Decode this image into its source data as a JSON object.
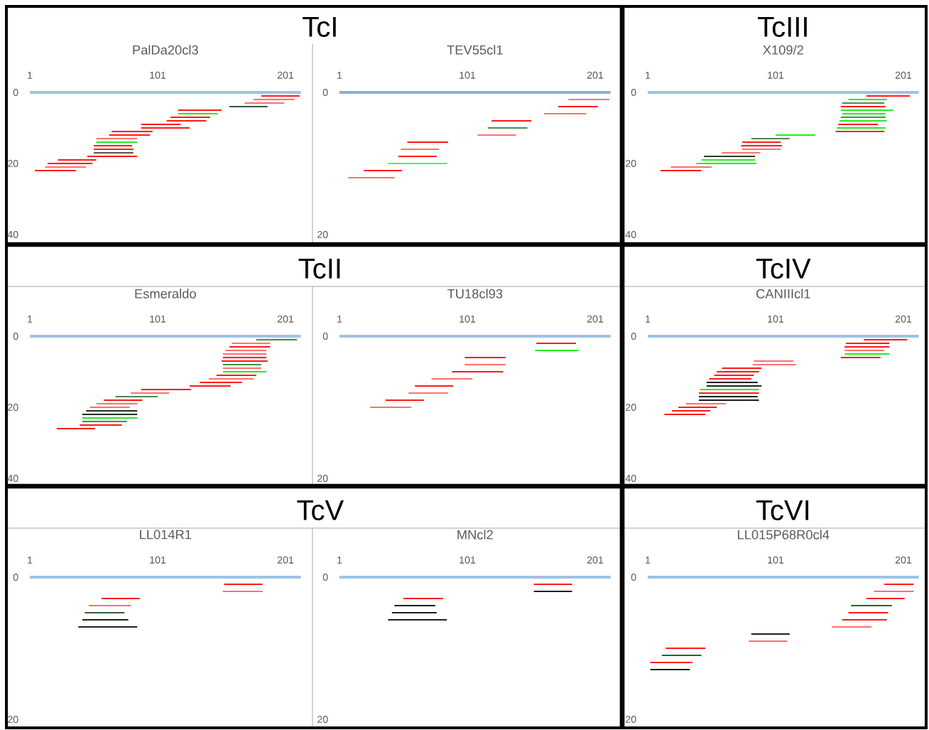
{
  "chart_data": [
    {
      "type": "line",
      "title": "PalDa20cl3",
      "annotations": [
        "TcI"
      ],
      "xlim": [
        1,
        213
      ],
      "ylim": [
        40,
        0
      ],
      "xticks": [
        1,
        101,
        201
      ],
      "yticks": [
        0,
        20,
        40
      ],
      "series": [
        {
          "color": "#9dc3e6",
          "x": [
            1,
            213
          ],
          "values": [
            0,
            0
          ]
        },
        {
          "color": "#ff1a1a",
          "x": [
            182,
            212,
            null,
            117,
            151,
            null,
            111,
            142,
            null,
            108,
            139,
            null,
            88,
            119,
            null,
            88,
            126,
            null,
            65,
            97,
            null,
            63,
            95,
            null,
            51,
            81,
            null,
            51,
            82,
            null,
            46,
            85,
            null,
            23,
            53,
            null,
            15,
            50,
            null,
            5,
            37
          ],
          "values": [
            1,
            1,
            null,
            5,
            5,
            null,
            7,
            7,
            null,
            8,
            8,
            null,
            9,
            9,
            null,
            10,
            10,
            null,
            11,
            11,
            null,
            12,
            12,
            null,
            15,
            15,
            null,
            16,
            16,
            null,
            18,
            18,
            null,
            19,
            19,
            null,
            20,
            20,
            null,
            22,
            22
          ]
        },
        {
          "color": "#ff7070",
          "x": [
            176,
            208,
            null,
            169,
            200,
            null,
            53,
            85,
            null,
            13,
            45
          ],
          "values": [
            2,
            2,
            null,
            3,
            3,
            null,
            13,
            13,
            null,
            21,
            21
          ]
        },
        {
          "color": "#22ee22",
          "x": [
            117,
            148,
            null,
            53,
            85
          ],
          "values": [
            6,
            6,
            null,
            14,
            14
          ]
        },
        {
          "color": "#2f5f2f",
          "x": [
            157,
            187
          ],
          "values": [
            4,
            4
          ]
        },
        {
          "color": "#555555",
          "x": [
            51,
            82
          ],
          "values": [
            17,
            17
          ]
        }
      ]
    },
    {
      "type": "line",
      "title": "TEV55cl1",
      "xlim": [
        1,
        213
      ],
      "ylim": [
        20,
        0
      ],
      "xticks": [
        1,
        101,
        201
      ],
      "yticks": [
        0,
        20
      ],
      "series": [
        {
          "color": "#8faadc",
          "x": [
            1,
            213
          ],
          "values": [
            0,
            0
          ]
        },
        {
          "color": "#ff1a1a",
          "x": [
            172,
            203,
            null,
            120,
            151,
            null,
            54,
            86,
            null,
            47,
            77,
            null,
            20,
            50
          ],
          "values": [
            2,
            2,
            null,
            4,
            4,
            null,
            7,
            7,
            null,
            9,
            9,
            null,
            11,
            11
          ]
        },
        {
          "color": "#ff7070",
          "x": [
            180,
            212,
            null,
            161,
            194,
            null,
            109,
            139,
            null,
            49,
            79,
            null,
            8,
            44
          ],
          "values": [
            1,
            1,
            null,
            3,
            3,
            null,
            6,
            6,
            null,
            8,
            8,
            null,
            12,
            12
          ]
        },
        {
          "color": "#44ff44",
          "x": [
            39,
            85
          ],
          "values": [
            10,
            10
          ]
        },
        {
          "color": "#4d8a4d",
          "x": [
            117,
            148
          ],
          "values": [
            5,
            5
          ]
        }
      ]
    },
    {
      "type": "line",
      "title": "X109/2",
      "annotations": [
        "TcIII"
      ],
      "xlim": [
        1,
        213
      ],
      "ylim": [
        40,
        0
      ],
      "xticks": [
        1,
        101,
        201
      ],
      "yticks": [
        0,
        20,
        40
      ],
      "series": [
        {
          "color": "#9dc3e6",
          "x": [
            1,
            213
          ],
          "values": [
            0,
            0
          ]
        },
        {
          "color": "#ff1a1a",
          "x": [
            172,
            206,
            null,
            152,
            187,
            null,
            150,
            181,
            null,
            148,
            186,
            null,
            75,
            105,
            null,
            74,
            106,
            null,
            11,
            43
          ],
          "values": [
            1,
            1,
            null,
            4,
            4,
            null,
            9,
            9,
            null,
            11,
            11,
            null,
            14,
            14,
            null,
            15,
            15,
            null,
            22,
            22
          ]
        },
        {
          "color": "#ff7070",
          "x": [
            75,
            105,
            null,
            59,
            89,
            null,
            19,
            51
          ],
          "values": [
            16,
            16,
            null,
            17,
            17,
            null,
            21,
            21
          ]
        },
        {
          "color": "#22ee22",
          "x": [
            158,
            188,
            null,
            152,
            193,
            null,
            153,
            187,
            null,
            151,
            188,
            null,
            149,
            187,
            null,
            101,
            132,
            null,
            43,
            85,
            null,
            39,
            86
          ],
          "values": [
            2,
            2,
            null,
            5,
            5,
            null,
            6,
            6,
            null,
            8,
            8,
            null,
            10,
            10,
            null,
            12,
            12,
            null,
            19,
            19,
            null,
            20,
            20
          ]
        },
        {
          "color": "#4d8a4d",
          "x": [
            153,
            186,
            null,
            152,
            187,
            null,
            82,
            112
          ],
          "values": [
            3,
            3,
            null,
            7,
            7,
            null,
            13,
            13
          ]
        },
        {
          "color": "#2a3f2a",
          "x": [
            45,
            85
          ],
          "values": [
            18,
            18
          ]
        }
      ]
    },
    {
      "type": "line",
      "title": "Esmeraldo",
      "annotations": [
        "TcII"
      ],
      "xlim": [
        1,
        213
      ],
      "ylim": [
        40,
        0
      ],
      "xticks": [
        1,
        101,
        201
      ],
      "yticks": [
        0,
        20,
        40
      ],
      "series": [
        {
          "color": "#9dc3e6",
          "x": [
            1,
            213
          ],
          "values": [
            0,
            0
          ]
        },
        {
          "color": "#ff1a1a",
          "x": [
            157,
            189,
            null,
            152,
            186,
            null,
            151,
            187,
            null,
            147,
            178,
            null,
            134,
            167,
            null,
            126,
            158,
            null,
            88,
            127,
            null,
            59,
            89,
            null,
            40,
            73,
            null,
            22,
            52
          ],
          "values": [
            3,
            3,
            null,
            6,
            6,
            null,
            7,
            7,
            null,
            11,
            11,
            null,
            13,
            13,
            null,
            14,
            14,
            null,
            15,
            15,
            null,
            18,
            18,
            null,
            25,
            25,
            null,
            26,
            26
          ]
        },
        {
          "color": "#ff7070",
          "x": [
            159,
            189,
            null,
            154,
            186,
            null,
            152,
            186,
            null,
            152,
            182,
            null,
            141,
            176,
            null,
            80,
            110,
            null,
            53,
            85,
            null,
            48,
            79
          ],
          "values": [
            2,
            2,
            null,
            4,
            4,
            null,
            5,
            5,
            null,
            9,
            9,
            null,
            12,
            12,
            null,
            16,
            16,
            null,
            19,
            19,
            null,
            20,
            20
          ]
        },
        {
          "color": "#22ee22",
          "x": [
            152,
            186,
            null,
            42,
            85
          ],
          "values": [
            10,
            10,
            null,
            23,
            23
          ]
        },
        {
          "color": "#4d8a4d",
          "x": [
            178,
            210,
            null,
            152,
            182,
            null,
            68,
            101,
            null,
            42,
            77
          ],
          "values": [
            1,
            1,
            null,
            8,
            8,
            null,
            17,
            17,
            null,
            24,
            24
          ]
        },
        {
          "color": "#1f331f",
          "x": [
            45,
            85,
            null,
            42,
            85
          ],
          "values": [
            21,
            21,
            null,
            22,
            22
          ]
        }
      ]
    },
    {
      "type": "line",
      "title": "TU18cl93",
      "xlim": [
        1,
        213
      ],
      "ylim": [
        20,
        0
      ],
      "xticks": [
        1,
        101,
        201
      ],
      "yticks": [
        0,
        20
      ],
      "series": [
        {
          "color": "#9dc3e6",
          "x": [
            1,
            213
          ],
          "values": [
            0,
            0
          ]
        },
        {
          "color": "#ff1a1a",
          "x": [
            155,
            186,
            null,
            99,
            131,
            null,
            89,
            129,
            null,
            60,
            90,
            null,
            37,
            67
          ],
          "values": [
            1,
            1,
            null,
            3,
            3,
            null,
            5,
            5,
            null,
            7,
            7,
            null,
            9,
            9
          ]
        },
        {
          "color": "#ff7070",
          "x": [
            99,
            131,
            null,
            73,
            105,
            null,
            55,
            86,
            null,
            25,
            57
          ],
          "values": [
            4,
            4,
            null,
            6,
            6,
            null,
            8,
            8,
            null,
            10,
            10
          ]
        },
        {
          "color": "#22ee22",
          "x": [
            154,
            188
          ],
          "values": [
            2,
            2
          ]
        }
      ]
    },
    {
      "type": "line",
      "title": "CANIIIcl1",
      "annotations": [
        "TcIV"
      ],
      "xlim": [
        1,
        213
      ],
      "ylim": [
        40,
        0
      ],
      "xticks": [
        1,
        101,
        201
      ],
      "yticks": [
        0,
        20,
        40
      ],
      "series": [
        {
          "color": "#9dc3e6",
          "x": [
            1,
            213
          ],
          "values": [
            0,
            0
          ]
        },
        {
          "color": "#ff1a1a",
          "x": [
            170,
            204,
            null,
            156,
            190,
            null,
            155,
            190,
            null,
            152,
            183,
            null,
            59,
            90,
            null,
            55,
            88,
            null,
            53,
            84,
            null,
            49,
            82,
            null,
            41,
            88,
            null,
            25,
            55,
            null,
            20,
            50,
            null,
            14,
            46
          ],
          "values": [
            1,
            1,
            null,
            2,
            2,
            null,
            3,
            3,
            null,
            6,
            6,
            null,
            9,
            9,
            null,
            10,
            10,
            null,
            11,
            11,
            null,
            12,
            12,
            null,
            16,
            16,
            null,
            20,
            20,
            null,
            21,
            21,
            null,
            22,
            22
          ]
        },
        {
          "color": "#ff7070",
          "x": [
            155,
            186,
            null,
            84,
            115,
            null,
            83,
            117,
            null,
            31,
            62
          ],
          "values": [
            4,
            4,
            null,
            7,
            7,
            null,
            8,
            8,
            null,
            19,
            19
          ]
        },
        {
          "color": "#22ee22",
          "x": [
            155,
            190,
            null,
            42,
            88
          ],
          "values": [
            5,
            5,
            null,
            15,
            15
          ]
        },
        {
          "color": "#1f1f1f",
          "x": [
            47,
            87,
            null,
            47,
            90,
            null,
            41,
            87,
            null,
            41,
            88
          ],
          "values": [
            13,
            13,
            null,
            14,
            14,
            null,
            17,
            17,
            null,
            18,
            18
          ]
        }
      ]
    },
    {
      "type": "line",
      "title": "LL014R1",
      "annotations": [
        "TcV"
      ],
      "xlim": [
        1,
        213
      ],
      "ylim": [
        20,
        0
      ],
      "xticks": [
        1,
        101,
        201
      ],
      "yticks": [
        0,
        20
      ],
      "series": [
        {
          "color": "#9dc3e6",
          "x": [
            1,
            213
          ],
          "values": [
            0,
            0
          ]
        },
        {
          "color": "#ff1a1a",
          "x": [
            153,
            183,
            null,
            57,
            87
          ],
          "values": [
            1,
            1,
            null,
            3,
            3
          ]
        },
        {
          "color": "#ff7070",
          "x": [
            152,
            183,
            null,
            47,
            80
          ],
          "values": [
            2,
            2,
            null,
            4,
            4
          ]
        },
        {
          "color": "#2f5f2f",
          "x": [
            44,
            75
          ],
          "values": [
            5,
            5
          ]
        },
        {
          "color": "#1f1f1f",
          "x": [
            42,
            78,
            null,
            39,
            85
          ],
          "values": [
            6,
            6,
            null,
            7,
            7
          ]
        }
      ]
    },
    {
      "type": "line",
      "title": "MNcl2",
      "xlim": [
        1,
        213
      ],
      "ylim": [
        20,
        0
      ],
      "xticks": [
        1,
        101,
        201
      ],
      "yticks": [
        0,
        20
      ],
      "series": [
        {
          "color": "#9dc3e6",
          "x": [
            1,
            213
          ],
          "values": [
            0,
            0
          ]
        },
        {
          "color": "#ff1a1a",
          "x": [
            153,
            183,
            null,
            51,
            82
          ],
          "values": [
            1,
            1,
            null,
            3,
            3
          ]
        },
        {
          "color": "#1f1f1f",
          "x": [
            153,
            183,
            null,
            44,
            76,
            null,
            42,
            77,
            null,
            39,
            85
          ],
          "values": [
            2,
            2,
            null,
            4,
            4,
            null,
            5,
            5,
            null,
            6,
            6
          ]
        }
      ]
    },
    {
      "type": "line",
      "title": "LL015P68R0cl4",
      "annotations": [
        "TcVI"
      ],
      "xlim": [
        1,
        213
      ],
      "ylim": [
        20,
        0
      ],
      "xticks": [
        1,
        101,
        201
      ],
      "yticks": [
        0,
        20
      ],
      "series": [
        {
          "color": "#9dc3e6",
          "x": [
            1,
            213
          ],
          "values": [
            0,
            0
          ]
        },
        {
          "color": "#ff1a1a",
          "x": [
            186,
            209,
            null,
            172,
            202,
            null,
            158,
            189,
            null,
            153,
            188,
            null,
            15,
            46,
            null,
            3,
            36
          ],
          "values": [
            1,
            1,
            null,
            3,
            3,
            null,
            5,
            5,
            null,
            6,
            6,
            null,
            10,
            10,
            null,
            12,
            12
          ]
        },
        {
          "color": "#ff7070",
          "x": [
            178,
            209,
            null,
            145,
            176,
            null,
            80,
            110
          ],
          "values": [
            2,
            2,
            null,
            7,
            7,
            null,
            9,
            9
          ]
        },
        {
          "color": "#2f5f2f",
          "x": [
            160,
            192,
            null,
            12,
            43
          ],
          "values": [
            4,
            4,
            null,
            11,
            11
          ]
        },
        {
          "color": "#1f1f1f",
          "x": [
            82,
            112,
            null,
            3,
            34
          ],
          "values": [
            8,
            8,
            null,
            13,
            13
          ]
        }
      ]
    }
  ]
}
